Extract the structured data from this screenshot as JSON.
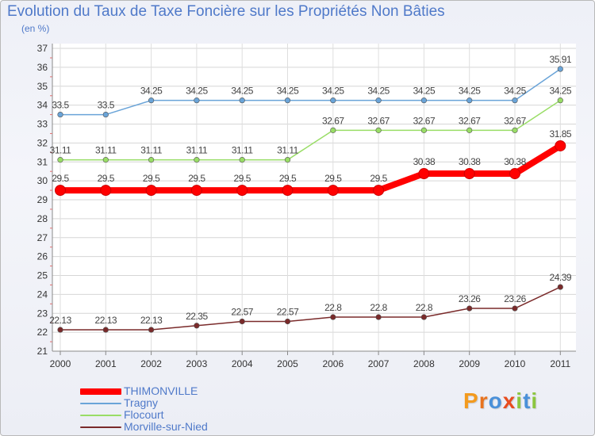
{
  "header": {
    "title": "Evolution du Taux de Taxe Foncière sur les Propriétés Non Bâties",
    "subtitle": "(en %)"
  },
  "brand": {
    "text": "Proxiti",
    "letters": [
      {
        "ch": "P",
        "color": "#f39a1e"
      },
      {
        "ch": "r",
        "color": "#e8731e"
      },
      {
        "ch": "o",
        "color": "#4a90d9"
      },
      {
        "ch": "x",
        "color": "#e84c1e"
      },
      {
        "ch": "i",
        "color": "#8cc63f"
      },
      {
        "ch": "t",
        "color": "#4a90d9"
      },
      {
        "ch": "i",
        "color": "#8cc63f"
      }
    ]
  },
  "chart_data": {
    "type": "line",
    "title": "Evolution du Taux de Taxe Foncière sur les Propriétés Non Bâties",
    "ylabel": "(en %)",
    "xlabel": "",
    "x": [
      "2000",
      "2001",
      "2002",
      "2003",
      "2004",
      "2005",
      "2006",
      "2007",
      "2008",
      "2009",
      "2010",
      "2011"
    ],
    "ylim": [
      21,
      37
    ],
    "yticks": [
      "21",
      "22",
      "23",
      "24",
      "25",
      "26",
      "27",
      "28",
      "29",
      "30",
      "31",
      "32",
      "33",
      "34",
      "35",
      "36",
      "37"
    ],
    "grid": true,
    "legend_position": "bottom-left",
    "series": [
      {
        "name": "Morville-sur-Nied",
        "color": "#7a2a2a",
        "values": [
          22.13,
          22.13,
          22.13,
          22.35,
          22.57,
          22.57,
          22.8,
          22.8,
          22.8,
          23.26,
          23.26,
          24.39
        ],
        "labels": [
          "22.13",
          "22.13",
          "22.13",
          "22.35",
          "22.57",
          "22.57",
          "22.8",
          "22.8",
          "22.8",
          "23.26",
          "23.26",
          "24.39"
        ]
      },
      {
        "name": "Flocourt",
        "color": "#99dd66",
        "values": [
          31.11,
          31.11,
          31.11,
          31.11,
          31.11,
          31.11,
          32.67,
          32.67,
          32.67,
          32.67,
          32.67,
          34.25
        ],
        "labels": [
          "31.11",
          "31.11",
          "31.11",
          "31.11",
          "31.11",
          "31.11",
          "32.67",
          "32.67",
          "32.67",
          "32.67",
          "32.67",
          "34.25"
        ]
      },
      {
        "name": "Tragny",
        "color": "#6aa4d8",
        "values": [
          33.5,
          33.5,
          34.25,
          34.25,
          34.25,
          34.25,
          34.25,
          34.25,
          34.25,
          34.25,
          34.25,
          35.91
        ],
        "labels": [
          "33.5",
          "33.5",
          "34.25",
          "34.25",
          "34.25",
          "34.25",
          "34.25",
          "34.25",
          "34.25",
          "34.25",
          "34.25",
          "35.91"
        ]
      },
      {
        "name": "THIMONVILLE",
        "color": "#ff0000",
        "values": [
          29.5,
          29.5,
          29.5,
          29.5,
          29.5,
          29.5,
          29.5,
          29.5,
          30.38,
          30.38,
          30.38,
          31.85
        ],
        "labels": [
          "29.5",
          "29.5",
          "29.5",
          "29.5",
          "29.5",
          "29.5",
          "29.5",
          "29.5",
          "30.38",
          "30.38",
          "30.38",
          "31.85"
        ]
      }
    ],
    "legend_order": [
      "THIMONVILLE",
      "Tragny",
      "Flocourt",
      "Morville-sur-Nied"
    ]
  }
}
